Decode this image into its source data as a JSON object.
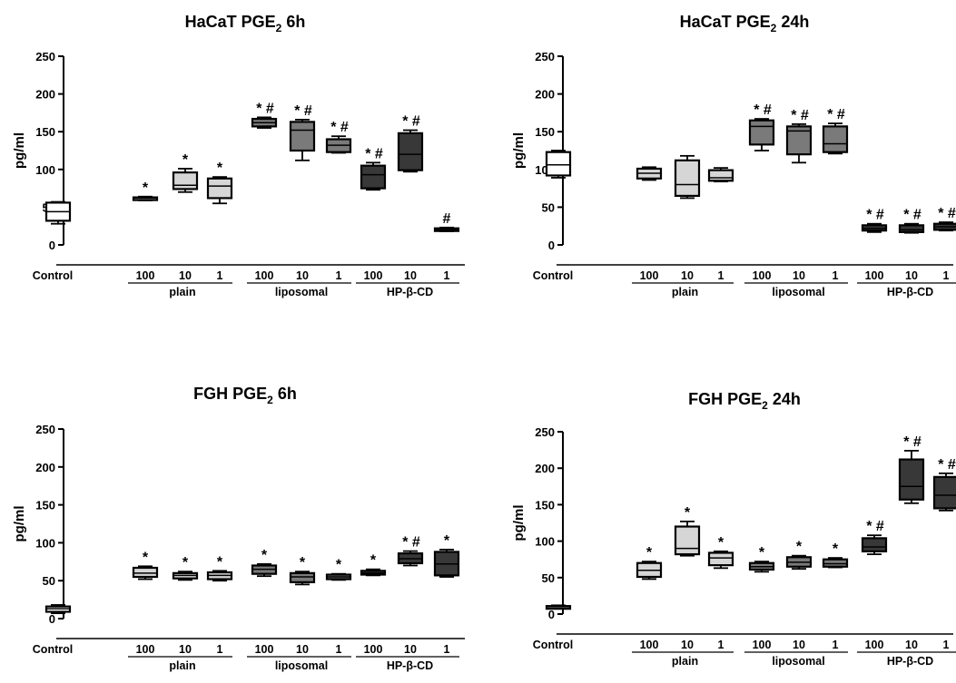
{
  "figure": {
    "groups": [
      "plain",
      "liposomal",
      "HP-β-CD"
    ],
    "legend": "none",
    "grid": false
  },
  "chart_data": [
    {
      "type": "box",
      "title": "HaCaT PGE",
      "title_sub": "2",
      "title_suffix": " 6h",
      "ylabel": "pg/ml",
      "ylim": [
        0,
        250
      ],
      "yticks": [
        0,
        50,
        100,
        150,
        200,
        250
      ],
      "categories": [
        "Control",
        "100",
        "10",
        "1",
        "100",
        "10",
        "1",
        "100",
        "10",
        "1"
      ],
      "boxes": [
        {
          "min": 28,
          "q1": 32,
          "median": 44,
          "q3": 56,
          "max": 57,
          "shade": "#ffffff",
          "mark": ""
        },
        {
          "min": 59,
          "q1": 60,
          "median": 62,
          "q3": 63,
          "max": 64,
          "shade": "#d6d6d6",
          "mark": "*"
        },
        {
          "min": 70,
          "q1": 74,
          "median": 79,
          "q3": 96,
          "max": 101,
          "shade": "#d6d6d6",
          "mark": "*"
        },
        {
          "min": 55,
          "q1": 62,
          "median": 78,
          "q3": 88,
          "max": 90,
          "shade": "#d6d6d6",
          "mark": "*"
        },
        {
          "min": 155,
          "q1": 157,
          "median": 162,
          "q3": 167,
          "max": 169,
          "shade": "#7a7a7a",
          "mark": "* #"
        },
        {
          "min": 112,
          "q1": 125,
          "median": 152,
          "q3": 163,
          "max": 166,
          "shade": "#7a7a7a",
          "mark": "* #"
        },
        {
          "min": 122,
          "q1": 123,
          "median": 132,
          "q3": 140,
          "max": 144,
          "shade": "#7a7a7a",
          "mark": "* #"
        },
        {
          "min": 73,
          "q1": 75,
          "median": 93,
          "q3": 105,
          "max": 109,
          "shade": "#383838",
          "mark": "* #"
        },
        {
          "min": 97,
          "q1": 99,
          "median": 120,
          "q3": 148,
          "max": 152,
          "shade": "#383838",
          "mark": "* #"
        },
        {
          "min": 18,
          "q1": 19,
          "median": 20,
          "q3": 22,
          "max": 23,
          "shade": "#383838",
          "mark": "#"
        }
      ]
    },
    {
      "type": "box",
      "title": "HaCaT PGE",
      "title_sub": "2",
      "title_suffix": " 24h",
      "ylabel": "pg/ml",
      "ylim": [
        0,
        250
      ],
      "yticks": [
        0,
        50,
        100,
        150,
        200,
        250
      ],
      "categories": [
        "Control",
        "100",
        "10",
        "1",
        "100",
        "10",
        "1",
        "100",
        "10",
        "1"
      ],
      "boxes": [
        {
          "min": 89,
          "q1": 92,
          "median": 106,
          "q3": 123,
          "max": 125,
          "shade": "#ffffff",
          "mark": ""
        },
        {
          "min": 86,
          "q1": 88,
          "median": 95,
          "q3": 101,
          "max": 103,
          "shade": "#d6d6d6",
          "mark": ""
        },
        {
          "min": 62,
          "q1": 65,
          "median": 80,
          "q3": 112,
          "max": 118,
          "shade": "#d6d6d6",
          "mark": ""
        },
        {
          "min": 84,
          "q1": 85,
          "median": 89,
          "q3": 99,
          "max": 102,
          "shade": "#d6d6d6",
          "mark": ""
        },
        {
          "min": 125,
          "q1": 133,
          "median": 157,
          "q3": 165,
          "max": 167,
          "shade": "#7a7a7a",
          "mark": "* #"
        },
        {
          "min": 109,
          "q1": 120,
          "median": 151,
          "q3": 157,
          "max": 160,
          "shade": "#7a7a7a",
          "mark": "* #"
        },
        {
          "min": 121,
          "q1": 123,
          "median": 134,
          "q3": 157,
          "max": 161,
          "shade": "#7a7a7a",
          "mark": "* #"
        },
        {
          "min": 17,
          "q1": 19,
          "median": 22,
          "q3": 26,
          "max": 28,
          "shade": "#383838",
          "mark": "* #"
        },
        {
          "min": 16,
          "q1": 17,
          "median": 20,
          "q3": 26,
          "max": 28,
          "shade": "#383838",
          "mark": "* #"
        },
        {
          "min": 19,
          "q1": 20,
          "median": 24,
          "q3": 28,
          "max": 30,
          "shade": "#383838",
          "mark": "* #"
        }
      ]
    },
    {
      "type": "box",
      "title": "FGH PGE",
      "title_sub": "2",
      "title_suffix": " 6h",
      "ylabel": "pg/ml",
      "ylim": [
        0,
        250
      ],
      "yticks": [
        0,
        50,
        100,
        150,
        200,
        250
      ],
      "categories": [
        "Control",
        "100",
        "10",
        "1",
        "100",
        "10",
        "1",
        "100",
        "10",
        "1"
      ],
      "boxes": [
        {
          "min": 7,
          "q1": 9,
          "median": 13,
          "q3": 16,
          "max": 18,
          "shade": "#ffffff",
          "mark": ""
        },
        {
          "min": 52,
          "q1": 55,
          "median": 60,
          "q3": 67,
          "max": 69,
          "shade": "#d6d6d6",
          "mark": "*"
        },
        {
          "min": 51,
          "q1": 53,
          "median": 57,
          "q3": 60,
          "max": 62,
          "shade": "#d6d6d6",
          "mark": "*"
        },
        {
          "min": 50,
          "q1": 52,
          "median": 57,
          "q3": 61,
          "max": 63,
          "shade": "#d6d6d6",
          "mark": "*"
        },
        {
          "min": 56,
          "q1": 59,
          "median": 65,
          "q3": 70,
          "max": 72,
          "shade": "#7a7a7a",
          "mark": "*"
        },
        {
          "min": 45,
          "q1": 48,
          "median": 55,
          "q3": 60,
          "max": 62,
          "shade": "#7a7a7a",
          "mark": "*"
        },
        {
          "min": 51,
          "q1": 52,
          "median": 55,
          "q3": 58,
          "max": 59,
          "shade": "#7a7a7a",
          "mark": "*"
        },
        {
          "min": 57,
          "q1": 58,
          "median": 60,
          "q3": 63,
          "max": 65,
          "shade": "#383838",
          "mark": "*"
        },
        {
          "min": 70,
          "q1": 73,
          "median": 79,
          "q3": 86,
          "max": 89,
          "shade": "#383838",
          "mark": "* #"
        },
        {
          "min": 55,
          "q1": 57,
          "median": 72,
          "q3": 88,
          "max": 91,
          "shade": "#383838",
          "mark": "*"
        }
      ]
    },
    {
      "type": "box",
      "title": "FGH PGE",
      "title_sub": "2",
      "title_suffix": " 24h",
      "ylabel": "pg/ml",
      "ylim": [
        0,
        250
      ],
      "yticks": [
        0,
        50,
        100,
        150,
        200,
        250
      ],
      "categories": [
        "Control",
        "100",
        "10",
        "1",
        "100",
        "10",
        "1",
        "100",
        "10",
        "1"
      ],
      "boxes": [
        {
          "min": 8,
          "q1": 9,
          "median": 10,
          "q3": 11,
          "max": 12,
          "shade": "#ffffff",
          "mark": ""
        },
        {
          "min": 48,
          "q1": 51,
          "median": 60,
          "q3": 70,
          "max": 72,
          "shade": "#d6d6d6",
          "mark": "*"
        },
        {
          "min": 80,
          "q1": 82,
          "median": 90,
          "q3": 120,
          "max": 127,
          "shade": "#d6d6d6",
          "mark": "*"
        },
        {
          "min": 63,
          "q1": 67,
          "median": 77,
          "q3": 84,
          "max": 86,
          "shade": "#d6d6d6",
          "mark": "*"
        },
        {
          "min": 58,
          "q1": 61,
          "median": 65,
          "q3": 70,
          "max": 72,
          "shade": "#7a7a7a",
          "mark": "*"
        },
        {
          "min": 62,
          "q1": 65,
          "median": 71,
          "q3": 78,
          "max": 80,
          "shade": "#7a7a7a",
          "mark": "*"
        },
        {
          "min": 64,
          "q1": 65,
          "median": 69,
          "q3": 75,
          "max": 77,
          "shade": "#7a7a7a",
          "mark": "*"
        },
        {
          "min": 82,
          "q1": 86,
          "median": 92,
          "q3": 104,
          "max": 108,
          "shade": "#383838",
          "mark": "* #"
        },
        {
          "min": 152,
          "q1": 157,
          "median": 175,
          "q3": 212,
          "max": 224,
          "shade": "#383838",
          "mark": "* #"
        },
        {
          "min": 142,
          "q1": 145,
          "median": 163,
          "q3": 188,
          "max": 193,
          "shade": "#383838",
          "mark": "* #"
        }
      ]
    }
  ]
}
